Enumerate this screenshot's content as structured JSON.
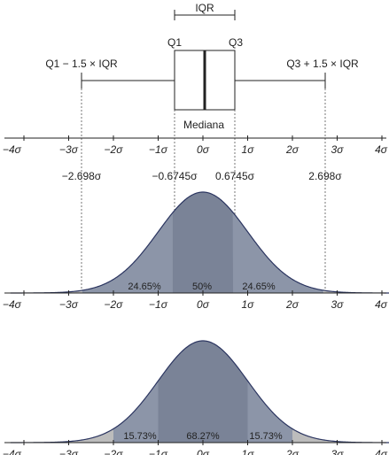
{
  "boxplot": {
    "iqr_label": "IQR",
    "q1_label": "Q1",
    "q3_label": "Q3",
    "lower_whisker_label": "Q1 − 1.5 × IQR",
    "upper_whisker_label": "Q3 + 1.5 × IQR",
    "median_label": "Mediana",
    "q1_value": -0.6745,
    "q3_value": 0.6745,
    "median_value": 0,
    "lower_whisker_value": -2.698,
    "upper_whisker_value": 2.698
  },
  "sigma_ticks": [
    "−4σ",
    "−3σ",
    "−2σ",
    "−1σ",
    "0σ",
    "1σ",
    "2σ",
    "3σ",
    "4σ"
  ],
  "marker_labels": {
    "lower_whisker": "−2.698σ",
    "q1": "−0.6745σ",
    "q3": "0.6745σ",
    "upper_whisker": "2.698σ"
  },
  "middle_curve": {
    "region_left": "24.65%",
    "region_center": "50%",
    "region_right": "24.65%"
  },
  "bottom_curve": {
    "region_left": "15.73%",
    "region_center": "68.27%",
    "region_right": "15.73%"
  },
  "colors": {
    "curve_fill": "#8c95a8",
    "curve_center_fill": "#7a8397",
    "curve_stroke": "#2b3560",
    "tail_fill": "#bcbcbc",
    "ink": "#222222"
  }
}
